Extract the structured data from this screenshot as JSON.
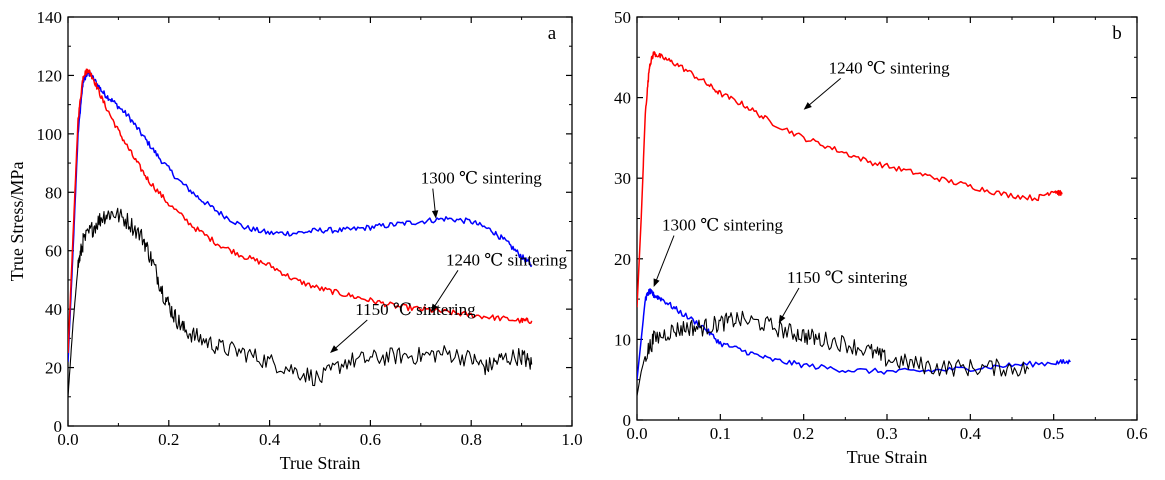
{
  "chart_data": [
    {
      "type": "line",
      "panel_label": "a",
      "xlabel": "True Strain",
      "ylabel": "True Stress/MPa",
      "xlim": [
        0.0,
        1.0
      ],
      "ylim": [
        0,
        140
      ],
      "x_ticks": [
        "0.0",
        "0.2",
        "0.4",
        "0.6",
        "0.8",
        "1.0"
      ],
      "y_ticks": [
        "0",
        "20",
        "40",
        "60",
        "80",
        "100",
        "120",
        "140"
      ],
      "grid": false,
      "series": [
        {
          "name": "1300 ℃ sintering",
          "color": "#0000ff",
          "x": [
            0.0,
            0.01,
            0.02,
            0.03,
            0.04,
            0.05,
            0.07,
            0.09,
            0.12,
            0.15,
            0.18,
            0.22,
            0.26,
            0.3,
            0.35,
            0.4,
            0.45,
            0.5,
            0.55,
            0.6,
            0.65,
            0.7,
            0.75,
            0.8,
            0.84,
            0.87,
            0.9,
            0.92
          ],
          "y": [
            22,
            60,
            100,
            118,
            121,
            119,
            114,
            111,
            106,
            99,
            92,
            84,
            78,
            73,
            68,
            66,
            66,
            67,
            67,
            68,
            69,
            70,
            71,
            70,
            67,
            63,
            58,
            55
          ]
        },
        {
          "name": "1240 ℃ sintering",
          "color": "#ff0000",
          "x": [
            0.0,
            0.01,
            0.02,
            0.03,
            0.04,
            0.05,
            0.07,
            0.1,
            0.13,
            0.16,
            0.2,
            0.25,
            0.3,
            0.35,
            0.4,
            0.45,
            0.5,
            0.55,
            0.6,
            0.65,
            0.7,
            0.75,
            0.8,
            0.85,
            0.9,
            0.92
          ],
          "y": [
            25,
            65,
            105,
            120,
            122,
            119,
            111,
            101,
            92,
            84,
            76,
            68,
            62,
            58,
            55,
            50,
            47,
            45,
            43,
            41,
            40,
            39,
            38,
            37,
            36,
            36
          ]
        },
        {
          "name": "1150 ℃ sintering",
          "color": "#000000",
          "x": [
            0.0,
            0.01,
            0.02,
            0.03,
            0.05,
            0.07,
            0.09,
            0.12,
            0.15,
            0.17,
            0.19,
            0.21,
            0.23,
            0.26,
            0.3,
            0.35,
            0.4,
            0.45,
            0.5,
            0.55,
            0.6,
            0.65,
            0.7,
            0.75,
            0.8,
            0.83,
            0.86,
            0.9,
            0.92
          ],
          "y": [
            10,
            35,
            55,
            63,
            68,
            72,
            73,
            70,
            64,
            55,
            45,
            38,
            33,
            30,
            27,
            25,
            22,
            19,
            16,
            22,
            23,
            24,
            24,
            25,
            23,
            20,
            23,
            24,
            21
          ]
        }
      ],
      "annotations": [
        {
          "text": "1300 ℃ sintering",
          "x": 0.7,
          "y": 83,
          "arrow_to": [
            0.73,
            71
          ]
        },
        {
          "text": "1240 ℃ sintering",
          "x": 0.75,
          "y": 55,
          "arrow_to": [
            0.72,
            39
          ]
        },
        {
          "text": "1150 ℃ sintering",
          "x": 0.57,
          "y": 38,
          "arrow_to": [
            0.52,
            25
          ]
        }
      ]
    },
    {
      "type": "line",
      "panel_label": "b",
      "xlabel": "True Strain",
      "ylabel": "",
      "xlim": [
        0.0,
        0.6
      ],
      "ylim": [
        0,
        50
      ],
      "x_ticks": [
        "0.0",
        "0.1",
        "0.2",
        "0.3",
        "0.4",
        "0.5",
        "0.6"
      ],
      "y_ticks": [
        "0",
        "10",
        "20",
        "30",
        "40",
        "50"
      ],
      "grid": false,
      "series": [
        {
          "name": "1240 ℃ sintering",
          "color": "#ff0000",
          "x": [
            0.0,
            0.005,
            0.01,
            0.015,
            0.02,
            0.03,
            0.05,
            0.08,
            0.1,
            0.13,
            0.16,
            0.2,
            0.24,
            0.28,
            0.32,
            0.36,
            0.4,
            0.44,
            0.48,
            0.5,
            0.51
          ],
          "y": [
            14,
            25,
            38,
            44,
            45.5,
            45,
            44,
            42,
            40.5,
            39,
            37,
            35,
            33.5,
            32,
            31,
            30,
            29,
            28,
            27.5,
            28.5,
            28
          ]
        },
        {
          "name": "1300 ℃ sintering",
          "color": "#0000ff",
          "x": [
            0.0,
            0.005,
            0.01,
            0.015,
            0.02,
            0.03,
            0.05,
            0.08,
            0.1,
            0.13,
            0.16,
            0.2,
            0.25,
            0.3,
            0.35,
            0.4,
            0.45,
            0.5,
            0.52
          ],
          "y": [
            5,
            10,
            15,
            16,
            15.5,
            15,
            13.5,
            11.5,
            9.5,
            8.5,
            7.5,
            6.8,
            6.2,
            6.0,
            6.1,
            6.4,
            6.8,
            7.1,
            7.2
          ]
        },
        {
          "name": "1150 ℃ sintering",
          "color": "#000000",
          "x": [
            0.0,
            0.005,
            0.01,
            0.02,
            0.04,
            0.06,
            0.08,
            0.1,
            0.12,
            0.15,
            0.18,
            0.2,
            0.22,
            0.25,
            0.28,
            0.3,
            0.33,
            0.36,
            0.4,
            0.44,
            0.47
          ],
          "y": [
            3,
            6,
            8,
            10,
            11,
            11.5,
            11.5,
            12,
            12.5,
            12,
            11,
            10.5,
            10,
            9.5,
            8.5,
            7.5,
            7,
            6.5,
            6.5,
            6.5,
            6.3
          ]
        }
      ],
      "annotations": [
        {
          "text": "1240 ℃ sintering",
          "x": 0.23,
          "y": 43,
          "arrow_to": [
            0.2,
            38.5
          ]
        },
        {
          "text": "1300 ℃ sintering",
          "x": 0.03,
          "y": 23.5,
          "arrow_to": [
            0.02,
            16.5
          ]
        },
        {
          "text": "1150  ℃ sintering",
          "x": 0.18,
          "y": 17,
          "arrow_to": [
            0.17,
            12
          ]
        }
      ]
    }
  ]
}
